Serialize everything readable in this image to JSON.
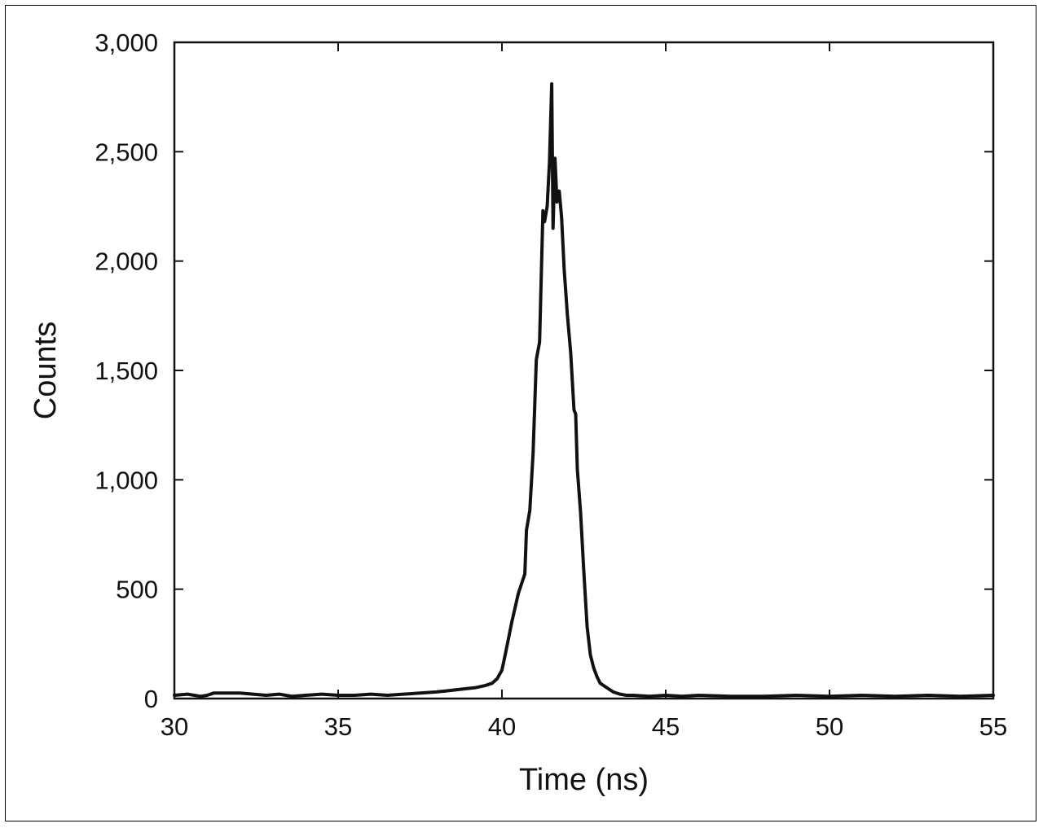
{
  "chart_data": {
    "type": "line",
    "xlabel": "Time (ns)",
    "ylabel": "Counts",
    "xlim": [
      30,
      55
    ],
    "ylim": [
      0,
      3000
    ],
    "xticks": [
      30,
      35,
      40,
      45,
      50,
      55
    ],
    "yticks": [
      0,
      500,
      1000,
      1500,
      2000,
      2500,
      3000
    ],
    "xtick_labels": [
      "30",
      "35",
      "40",
      "45",
      "50",
      "55"
    ],
    "ytick_labels": [
      "0",
      "500",
      "1,000",
      "1,500",
      "2,000",
      "2,500",
      "3,000"
    ],
    "grid": false,
    "line_color": "#111111",
    "series": [
      {
        "x": [
          30.0,
          30.4,
          30.8,
          31.0,
          31.2,
          31.6,
          32.0,
          32.4,
          32.8,
          33.2,
          33.6,
          34.0,
          34.5,
          35.0,
          35.5,
          36.0,
          36.5,
          37.0,
          37.5,
          38.0,
          38.3,
          38.6,
          38.9,
          39.2,
          39.5,
          39.7,
          39.85,
          40.0,
          40.1,
          40.3,
          40.5,
          40.7,
          40.75,
          40.85,
          40.95,
          41.05,
          41.15,
          41.25,
          41.3,
          41.38,
          41.45,
          41.52,
          41.56,
          41.62,
          41.68,
          41.75,
          41.82,
          41.9,
          42.0,
          42.1,
          42.2,
          42.25,
          42.3,
          42.4,
          42.5,
          42.6,
          42.7,
          42.8,
          42.9,
          43.0,
          43.2,
          43.4,
          43.6,
          43.8,
          44.0,
          44.5,
          45.0,
          45.5,
          46.0,
          47.0,
          48.0,
          49.0,
          50.0,
          51.0,
          52.0,
          53.0,
          54.0,
          55.0
        ],
        "y": [
          15,
          20,
          10,
          15,
          25,
          25,
          25,
          20,
          15,
          20,
          10,
          15,
          20,
          15,
          15,
          20,
          15,
          20,
          25,
          30,
          35,
          40,
          45,
          50,
          60,
          70,
          90,
          130,
          200,
          350,
          480,
          570,
          770,
          860,
          1120,
          1550,
          1630,
          2230,
          2180,
          2250,
          2450,
          2810,
          2150,
          2470,
          2270,
          2320,
          2200,
          1960,
          1750,
          1580,
          1320,
          1300,
          1050,
          850,
          580,
          330,
          200,
          140,
          100,
          70,
          50,
          30,
          20,
          15,
          15,
          10,
          15,
          10,
          15,
          10,
          10,
          15,
          10,
          15,
          10,
          15,
          10,
          15
        ]
      }
    ]
  }
}
